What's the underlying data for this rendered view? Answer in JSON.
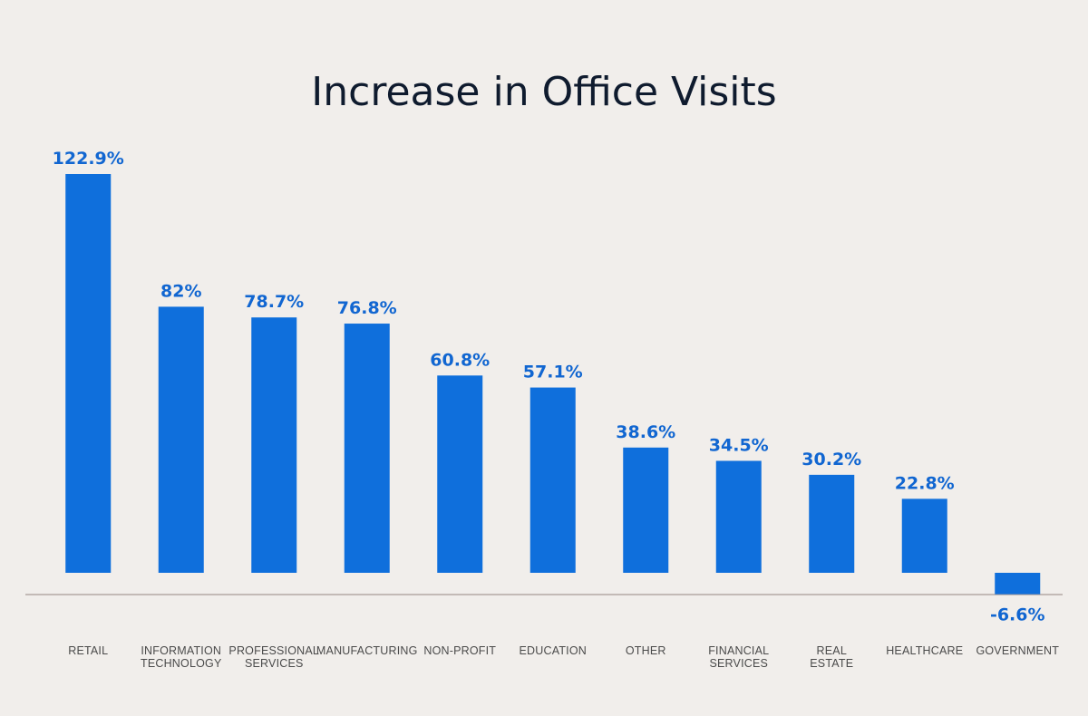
{
  "chart_data": {
    "type": "bar",
    "title": "Increase in Office Visits",
    "xlabel": "",
    "ylabel": "",
    "categories": [
      "RETAIL",
      "INFORMATION TECHNOLOGY",
      "PROFESSIONAL SERVICES",
      "MANUFACTURING",
      "NON-PROFIT",
      "EDUCATION",
      "OTHER",
      "FINANCIAL SERVICES",
      "REAL ESTATE",
      "HEALTHCARE",
      "GOVERNMENT"
    ],
    "category_lines": [
      [
        "RETAIL"
      ],
      [
        "INFORMATION",
        "TECHNOLOGY"
      ],
      [
        "PROFESSIONAL",
        "SERVICES"
      ],
      [
        "MANUFACTURING"
      ],
      [
        "NON-PROFIT"
      ],
      [
        "EDUCATION"
      ],
      [
        "OTHER"
      ],
      [
        "FINANCIAL",
        "SERVICES"
      ],
      [
        "REAL",
        "ESTATE"
      ],
      [
        "HEALTHCARE"
      ],
      [
        "GOVERNMENT"
      ]
    ],
    "values": [
      122.9,
      82,
      78.7,
      76.8,
      60.8,
      57.1,
      38.6,
      34.5,
      30.2,
      22.8,
      -6.6
    ],
    "value_labels": [
      "122.9%",
      "82%",
      "78.7%",
      "76.8%",
      "60.8%",
      "57.1%",
      "38.6%",
      "34.5%",
      "30.2%",
      "22.8%",
      "-6.6%"
    ],
    "ylim": [
      -6.6,
      122.9
    ],
    "grid": false,
    "legend": "none",
    "colors": {
      "bar": "#0f6fdc",
      "value_label": "#1166d1",
      "baseline": "#a89a96",
      "background": "#f1eeeb"
    }
  }
}
